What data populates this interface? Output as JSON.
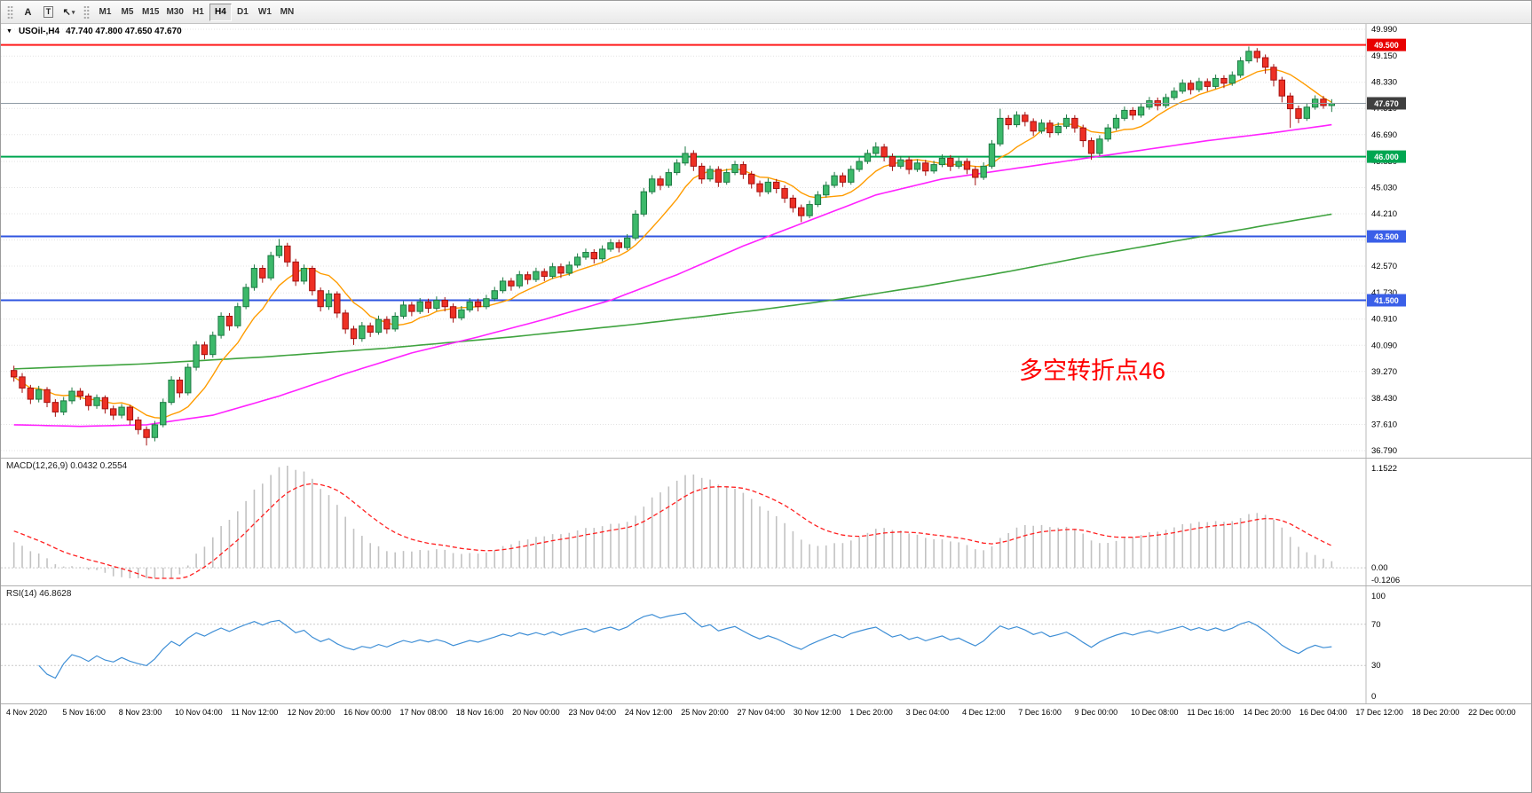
{
  "toolbar": {
    "tools": [
      {
        "name": "text-tool-button",
        "icon": "text-tool-icon",
        "glyph": "A"
      },
      {
        "name": "textlabel-tool-button",
        "icon": "textlabel-tool-icon",
        "glyph": "T",
        "boxed": true
      },
      {
        "name": "arrows-tool-button",
        "icon": "arrows-tool-icon",
        "glyph": "↖",
        "dropdown_glyph": "▾"
      }
    ],
    "timeframes": [
      "M1",
      "M5",
      "M15",
      "M30",
      "H1",
      "H4",
      "D1",
      "W1",
      "MN"
    ],
    "active_timeframe": "H4"
  },
  "main_chart": {
    "dropdown_icon": "▼",
    "title_symbol": "USOil-,H4",
    "title_ohlc": "47.740 47.800 47.650 47.670",
    "annotation": {
      "text": "多空转折点46",
      "color": "#ff0000"
    },
    "price_range": {
      "max": 49.99,
      "min": 36.79
    },
    "price_axis_labels": [
      "49.990",
      "49.150",
      "48.330",
      "47.510",
      "46.690",
      "45.850",
      "45.030",
      "44.210",
      "43.390",
      "42.570",
      "41.730",
      "40.910",
      "40.090",
      "39.270",
      "38.430",
      "37.610",
      "36.790"
    ],
    "hlines": [
      {
        "price": 49.5,
        "label": "49.500",
        "color": "#ff1a1a",
        "tag_bg": "#e80000",
        "width": 2
      },
      {
        "price": 46.0,
        "label": "46.000",
        "color": "#00a651",
        "tag_bg": "#00a651",
        "width": 2
      },
      {
        "price": 43.5,
        "label": "43.500",
        "color": "#2f55e0",
        "tag_bg": "#3a5fe8",
        "width": 2
      },
      {
        "price": 41.5,
        "label": "41.500",
        "color": "#2f55e0",
        "tag_bg": "#3a5fe8",
        "width": 2
      }
    ],
    "current_price": {
      "value": 47.67,
      "label": "47.670",
      "line_color": "#8e9aa3",
      "tag_bg": "#3f3f3f"
    },
    "colors": {
      "up": "#3cb96a",
      "up_border": "#1e7a44",
      "down": "#ee3024",
      "down_border": "#a31010",
      "grid": "#e3e3e3"
    },
    "ma": {
      "fast": {
        "name": "ma-fast",
        "color": "#ff9c00",
        "period": 8
      },
      "mid": {
        "name": "ma-mid",
        "color": "#ff22ff",
        "points": [
          [
            0,
            37.6
          ],
          [
            8,
            37.55
          ],
          [
            16,
            37.6
          ],
          [
            24,
            37.9
          ],
          [
            32,
            38.5
          ],
          [
            40,
            39.2
          ],
          [
            48,
            39.85
          ],
          [
            56,
            40.35
          ],
          [
            64,
            40.9
          ],
          [
            72,
            41.5
          ],
          [
            80,
            42.3
          ],
          [
            88,
            43.2
          ],
          [
            96,
            44.0
          ],
          [
            104,
            44.8
          ],
          [
            112,
            45.3
          ],
          [
            120,
            45.6
          ],
          [
            128,
            45.9
          ],
          [
            136,
            46.2
          ],
          [
            144,
            46.5
          ],
          [
            152,
            46.75
          ],
          [
            159,
            47.0
          ]
        ]
      },
      "slow": {
        "name": "ma-slow",
        "color": "#3fa33f",
        "points": [
          [
            0,
            39.35
          ],
          [
            15,
            39.5
          ],
          [
            30,
            39.72
          ],
          [
            45,
            40.0
          ],
          [
            60,
            40.35
          ],
          [
            75,
            40.75
          ],
          [
            90,
            41.2
          ],
          [
            100,
            41.55
          ],
          [
            110,
            41.95
          ],
          [
            120,
            42.4
          ],
          [
            130,
            42.9
          ],
          [
            140,
            43.35
          ],
          [
            150,
            43.8
          ],
          [
            159,
            44.2
          ]
        ]
      }
    }
  },
  "chart_data": {
    "type": "candlestick",
    "symbol": "USOil-",
    "timeframe": "H4",
    "candles": [
      [
        39.3,
        39.45,
        38.95,
        39.1
      ],
      [
        39.1,
        39.22,
        38.6,
        38.75
      ],
      [
        38.75,
        38.85,
        38.25,
        38.4
      ],
      [
        38.4,
        38.82,
        38.3,
        38.7
      ],
      [
        38.7,
        38.78,
        38.15,
        38.3
      ],
      [
        38.3,
        38.4,
        37.85,
        38.0
      ],
      [
        38.0,
        38.47,
        37.9,
        38.35
      ],
      [
        38.35,
        38.77,
        38.25,
        38.65
      ],
      [
        38.65,
        38.75,
        38.38,
        38.5
      ],
      [
        38.5,
        38.58,
        38.05,
        38.2
      ],
      [
        38.2,
        38.55,
        38.1,
        38.45
      ],
      [
        38.45,
        38.52,
        37.95,
        38.1
      ],
      [
        38.1,
        38.2,
        37.75,
        37.9
      ],
      [
        37.9,
        38.25,
        37.8,
        38.15
      ],
      [
        38.15,
        38.22,
        37.6,
        37.75
      ],
      [
        37.75,
        37.85,
        37.3,
        37.45
      ],
      [
        37.45,
        37.55,
        36.95,
        37.2
      ],
      [
        37.2,
        37.72,
        37.08,
        37.6
      ],
      [
        37.6,
        38.42,
        37.52,
        38.3
      ],
      [
        38.3,
        39.12,
        38.22,
        39.0
      ],
      [
        39.0,
        39.1,
        38.45,
        38.6
      ],
      [
        38.6,
        39.52,
        38.52,
        39.4
      ],
      [
        39.4,
        40.22,
        39.3,
        40.1
      ],
      [
        40.1,
        40.2,
        39.65,
        39.8
      ],
      [
        39.8,
        40.52,
        39.7,
        40.4
      ],
      [
        40.4,
        41.12,
        40.3,
        41.0
      ],
      [
        41.0,
        41.1,
        40.55,
        40.7
      ],
      [
        40.7,
        41.42,
        40.62,
        41.3
      ],
      [
        41.3,
        42.02,
        41.22,
        41.9
      ],
      [
        41.9,
        42.62,
        41.8,
        42.5
      ],
      [
        42.5,
        42.6,
        42.05,
        42.2
      ],
      [
        42.2,
        43.02,
        42.12,
        42.9
      ],
      [
        42.9,
        43.42,
        42.82,
        43.2
      ],
      [
        43.2,
        43.3,
        42.55,
        42.7
      ],
      [
        42.7,
        42.8,
        41.95,
        42.1
      ],
      [
        42.1,
        42.62,
        42.0,
        42.5
      ],
      [
        42.5,
        42.58,
        41.65,
        41.8
      ],
      [
        41.8,
        41.9,
        41.15,
        41.3
      ],
      [
        41.3,
        41.82,
        41.2,
        41.7
      ],
      [
        41.7,
        41.78,
        40.95,
        41.1
      ],
      [
        41.1,
        41.2,
        40.45,
        40.6
      ],
      [
        40.6,
        40.7,
        40.1,
        40.3
      ],
      [
        40.3,
        40.82,
        40.2,
        40.7
      ],
      [
        40.7,
        40.8,
        40.35,
        40.5
      ],
      [
        40.5,
        41.02,
        40.42,
        40.9
      ],
      [
        40.9,
        41.0,
        40.45,
        40.6
      ],
      [
        40.6,
        41.12,
        40.52,
        41.0
      ],
      [
        41.0,
        41.47,
        40.92,
        41.35
      ],
      [
        41.35,
        41.45,
        41.0,
        41.15
      ],
      [
        41.15,
        41.57,
        41.07,
        41.45
      ],
      [
        41.45,
        41.55,
        41.1,
        41.25
      ],
      [
        41.25,
        41.62,
        41.17,
        41.5
      ],
      [
        41.5,
        41.6,
        41.15,
        41.3
      ],
      [
        41.3,
        41.4,
        40.8,
        40.95
      ],
      [
        40.95,
        41.32,
        40.87,
        41.2
      ],
      [
        41.2,
        41.57,
        41.12,
        41.45
      ],
      [
        41.45,
        41.55,
        41.15,
        41.3
      ],
      [
        41.3,
        41.67,
        41.22,
        41.55
      ],
      [
        41.55,
        41.92,
        41.47,
        41.8
      ],
      [
        41.8,
        42.22,
        41.72,
        42.1
      ],
      [
        42.1,
        42.2,
        41.8,
        41.95
      ],
      [
        41.95,
        42.42,
        41.87,
        42.3
      ],
      [
        42.3,
        42.4,
        42.0,
        42.15
      ],
      [
        42.15,
        42.52,
        42.07,
        42.4
      ],
      [
        42.4,
        42.5,
        42.1,
        42.25
      ],
      [
        42.25,
        42.67,
        42.17,
        42.55
      ],
      [
        42.55,
        42.65,
        42.2,
        42.35
      ],
      [
        42.35,
        42.72,
        42.27,
        42.6
      ],
      [
        42.6,
        42.97,
        42.52,
        42.85
      ],
      [
        42.85,
        43.12,
        42.77,
        43.0
      ],
      [
        43.0,
        43.1,
        42.65,
        42.8
      ],
      [
        42.8,
        43.22,
        42.72,
        43.1
      ],
      [
        43.1,
        43.42,
        43.02,
        43.3
      ],
      [
        43.3,
        43.4,
        43.0,
        43.15
      ],
      [
        43.15,
        43.57,
        43.07,
        43.45
      ],
      [
        43.45,
        44.32,
        43.37,
        44.2
      ],
      [
        44.2,
        45.02,
        44.12,
        44.9
      ],
      [
        44.9,
        45.42,
        44.82,
        45.3
      ],
      [
        45.3,
        45.4,
        44.95,
        45.1
      ],
      [
        45.1,
        45.62,
        45.02,
        45.5
      ],
      [
        45.5,
        45.92,
        45.42,
        45.8
      ],
      [
        45.8,
        46.32,
        45.72,
        46.1
      ],
      [
        46.1,
        46.2,
        45.55,
        45.7
      ],
      [
        45.7,
        45.8,
        45.15,
        45.3
      ],
      [
        45.3,
        45.72,
        45.22,
        45.6
      ],
      [
        45.6,
        45.7,
        45.05,
        45.2
      ],
      [
        45.2,
        45.62,
        45.12,
        45.5
      ],
      [
        45.5,
        45.87,
        45.42,
        45.75
      ],
      [
        45.75,
        45.85,
        45.3,
        45.45
      ],
      [
        45.45,
        45.55,
        45.0,
        45.15
      ],
      [
        45.15,
        45.25,
        44.75,
        44.9
      ],
      [
        44.9,
        45.32,
        44.82,
        45.2
      ],
      [
        45.2,
        45.3,
        44.85,
        45.0
      ],
      [
        45.0,
        45.1,
        44.55,
        44.7
      ],
      [
        44.7,
        44.8,
        44.25,
        44.4
      ],
      [
        44.4,
        44.5,
        43.95,
        44.15
      ],
      [
        44.15,
        44.62,
        44.07,
        44.5
      ],
      [
        44.5,
        44.92,
        44.42,
        44.8
      ],
      [
        44.8,
        45.22,
        44.72,
        45.1
      ],
      [
        45.1,
        45.52,
        45.02,
        45.4
      ],
      [
        45.4,
        45.5,
        45.05,
        45.2
      ],
      [
        45.2,
        45.72,
        45.12,
        45.6
      ],
      [
        45.6,
        45.97,
        45.52,
        45.85
      ],
      [
        45.85,
        46.22,
        45.77,
        46.1
      ],
      [
        46.1,
        46.45,
        46.02,
        46.3
      ],
      [
        46.3,
        46.4,
        45.85,
        46.0
      ],
      [
        46.0,
        46.1,
        45.55,
        45.7
      ],
      [
        45.7,
        46.02,
        45.62,
        45.9
      ],
      [
        45.9,
        46.0,
        45.45,
        45.6
      ],
      [
        45.6,
        45.92,
        45.52,
        45.8
      ],
      [
        45.8,
        45.9,
        45.4,
        45.55
      ],
      [
        45.55,
        45.87,
        45.47,
        45.75
      ],
      [
        45.75,
        46.07,
        45.67,
        45.95
      ],
      [
        45.95,
        46.05,
        45.55,
        45.7
      ],
      [
        45.7,
        45.97,
        45.62,
        45.85
      ],
      [
        45.85,
        45.95,
        45.45,
        45.6
      ],
      [
        45.6,
        45.7,
        45.1,
        45.35
      ],
      [
        45.35,
        45.82,
        45.27,
        45.7
      ],
      [
        45.7,
        46.52,
        45.62,
        46.4
      ],
      [
        46.4,
        47.5,
        46.32,
        47.2
      ],
      [
        47.2,
        47.3,
        46.85,
        47.0
      ],
      [
        47.0,
        47.42,
        46.92,
        47.3
      ],
      [
        47.3,
        47.4,
        46.95,
        47.1
      ],
      [
        47.1,
        47.2,
        46.65,
        46.8
      ],
      [
        46.8,
        47.17,
        46.72,
        47.05
      ],
      [
        47.05,
        47.15,
        46.6,
        46.75
      ],
      [
        46.75,
        47.07,
        46.67,
        46.95
      ],
      [
        46.95,
        47.32,
        46.87,
        47.2
      ],
      [
        47.2,
        47.3,
        46.75,
        46.9
      ],
      [
        46.9,
        47.0,
        46.3,
        46.5
      ],
      [
        46.5,
        46.6,
        45.9,
        46.1
      ],
      [
        46.1,
        46.67,
        46.02,
        46.55
      ],
      [
        46.55,
        47.02,
        46.47,
        46.9
      ],
      [
        46.9,
        47.32,
        46.82,
        47.2
      ],
      [
        47.2,
        47.57,
        47.12,
        47.45
      ],
      [
        47.45,
        47.55,
        47.15,
        47.3
      ],
      [
        47.3,
        47.67,
        47.22,
        47.55
      ],
      [
        47.55,
        47.87,
        47.47,
        47.75
      ],
      [
        47.75,
        47.85,
        47.45,
        47.6
      ],
      [
        47.6,
        47.97,
        47.52,
        47.85
      ],
      [
        47.85,
        48.17,
        47.77,
        48.05
      ],
      [
        48.05,
        48.42,
        47.97,
        48.3
      ],
      [
        48.3,
        48.4,
        47.95,
        48.1
      ],
      [
        48.1,
        48.47,
        48.02,
        48.35
      ],
      [
        48.35,
        48.45,
        48.05,
        48.2
      ],
      [
        48.2,
        48.57,
        48.12,
        48.45
      ],
      [
        48.45,
        48.55,
        48.15,
        48.3
      ],
      [
        48.3,
        48.67,
        48.22,
        48.55
      ],
      [
        48.55,
        49.12,
        48.47,
        49.0
      ],
      [
        49.0,
        49.45,
        48.92,
        49.3
      ],
      [
        49.3,
        49.4,
        48.95,
        49.1
      ],
      [
        49.1,
        49.2,
        48.6,
        48.8
      ],
      [
        48.8,
        48.9,
        48.2,
        48.4
      ],
      [
        48.4,
        48.5,
        47.7,
        47.9
      ],
      [
        47.9,
        48.0,
        46.9,
        47.5
      ],
      [
        47.5,
        47.6,
        47.05,
        47.2
      ],
      [
        47.2,
        47.67,
        47.12,
        47.55
      ],
      [
        47.55,
        47.92,
        47.47,
        47.8
      ],
      [
        47.8,
        47.9,
        47.5,
        47.6
      ],
      [
        47.6,
        47.8,
        47.4,
        47.67
      ]
    ]
  },
  "macd": {
    "label": "MACD(12,26,9) 0.0432 0.2554",
    "params": [
      12,
      26,
      9
    ],
    "value_macd": "0.0432",
    "value_signal": "0.2554",
    "axis": {
      "top": "1.1522",
      "zero": "0.00",
      "bottom": "-0.1206"
    },
    "range": {
      "max": 1.1522,
      "min": -0.1206
    },
    "histogram_color": "#c2c2c2",
    "signal_color": "#ff2020"
  },
  "rsi": {
    "label": "RSI(14) 46.8628",
    "period": 14,
    "value": "46.8628",
    "axis_labels": [
      "100",
      "70",
      "30",
      "0"
    ],
    "levels": [
      70,
      30
    ],
    "line_color": "#3f8fd6"
  },
  "time_axis": {
    "labels": [
      "4 Nov 2020",
      "5 Nov 16:00",
      "8 Nov 23:00",
      "10 Nov 04:00",
      "11 Nov 12:00",
      "12 Nov 20:00",
      "16 Nov 00:00",
      "17 Nov 08:00",
      "18 Nov 16:00",
      "20 Nov 00:00",
      "23 Nov 04:00",
      "24 Nov 12:00",
      "25 Nov 20:00",
      "27 Nov 04:00",
      "30 Nov 12:00",
      "1 Dec 20:00",
      "3 Dec 04:00",
      "4 Dec 12:00",
      "7 Dec 16:00",
      "9 Dec 00:00",
      "10 Dec 08:00",
      "11 Dec 16:00",
      "14 Dec 20:00",
      "16 Dec 04:00",
      "17 Dec 12:00",
      "18 Dec 20:00",
      "22 Dec 00:00"
    ]
  }
}
